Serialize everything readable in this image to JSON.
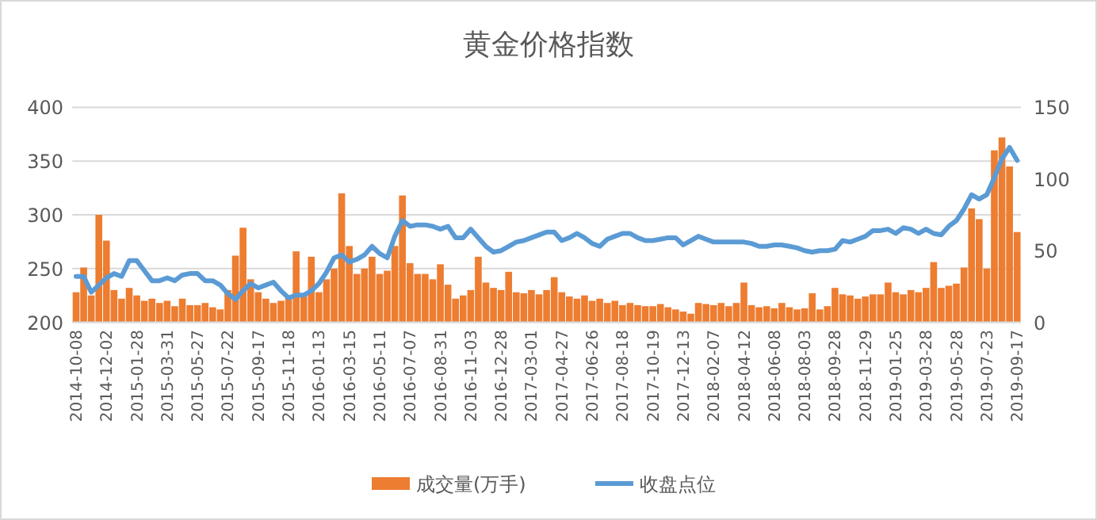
{
  "chart_data": {
    "type": "bar",
    "title": "黄金价格指数",
    "categories": [
      "2014-10-08",
      null,
      null,
      null,
      "2014-12-02",
      null,
      null,
      null,
      "2015-01-28",
      null,
      null,
      null,
      "2015-03-31",
      null,
      null,
      null,
      "2015-05-27",
      null,
      null,
      null,
      "2015-07-22",
      null,
      null,
      null,
      "2015-09-17",
      null,
      null,
      null,
      "2015-11-18",
      null,
      null,
      null,
      "2016-01-13",
      null,
      null,
      null,
      "2016-03-15",
      null,
      null,
      null,
      "2016-05-11",
      null,
      null,
      null,
      "2016-07-07",
      null,
      null,
      null,
      "2016-08-31",
      null,
      null,
      null,
      "2016-11-03",
      null,
      null,
      null,
      "2016-12-28",
      null,
      null,
      null,
      "2017-03-01",
      null,
      null,
      null,
      "2017-04-27",
      null,
      null,
      null,
      "2017-06-26",
      null,
      null,
      null,
      "2017-08-18",
      null,
      null,
      null,
      "2017-10-19",
      null,
      null,
      null,
      "2017-12-13",
      null,
      null,
      null,
      "2018-02-07",
      null,
      null,
      null,
      "2018-04-12",
      null,
      null,
      null,
      "2018-06-08",
      null,
      null,
      null,
      "2018-08-03",
      null,
      null,
      null,
      "2018-09-28",
      null,
      null,
      null,
      "2018-11-29",
      null,
      null,
      null,
      "2019-01-25",
      null,
      null,
      null,
      "2019-03-28",
      null,
      null,
      null,
      "2019-05-28",
      null,
      null,
      null,
      "2019-07-23",
      null,
      null,
      null,
      "2019-09-17"
    ],
    "series": [
      {
        "name": "成交量(万手)",
        "type": "bar",
        "color": "#ed7d31",
        "values": [
          228,
          251,
          225,
          300,
          276,
          230,
          222,
          232,
          225,
          220,
          222,
          218,
          220,
          215,
          222,
          216,
          216,
          218,
          214,
          212,
          230,
          262,
          288,
          240,
          228,
          222,
          218,
          220,
          225,
          266,
          225,
          261,
          228,
          240,
          250,
          320,
          271,
          245,
          250,
          261,
          245,
          248,
          271,
          318,
          255,
          245,
          245,
          240,
          254,
          235,
          222,
          225,
          230,
          261,
          237,
          232,
          230,
          247,
          228,
          227,
          230,
          226,
          230,
          242,
          228,
          224,
          222,
          225,
          220,
          222,
          218,
          220,
          216,
          218,
          216,
          215,
          215,
          217,
          214,
          212,
          210,
          208,
          218,
          217,
          216,
          218,
          215,
          218,
          237,
          216,
          214,
          215,
          213,
          218,
          214,
          212,
          213,
          227,
          212,
          215,
          232,
          226,
          225,
          222,
          224,
          226,
          226,
          237,
          228,
          226,
          230,
          228,
          232,
          256,
          232,
          234,
          236,
          251,
          306,
          296,
          250,
          360,
          372,
          345,
          284
        ]
      },
      {
        "name": "收盘点位",
        "type": "line",
        "axis": "y2",
        "color": "#5b9bd5",
        "values": [
          32,
          32,
          21,
          26,
          31,
          34,
          32,
          43,
          43,
          36,
          29,
          29,
          31,
          29,
          33,
          34,
          34,
          29,
          29,
          26,
          20,
          16,
          22,
          27,
          24,
          26,
          28,
          22,
          17,
          19,
          19,
          22,
          27,
          35,
          45,
          47,
          42,
          44,
          47,
          53,
          48,
          45,
          60,
          71,
          67,
          68,
          68,
          67,
          65,
          67,
          59,
          59,
          65,
          59,
          53,
          49,
          50,
          53,
          56,
          57,
          59,
          61,
          63,
          63,
          57,
          59,
          62,
          59,
          55,
          53,
          58,
          60,
          62,
          62,
          59,
          57,
          57,
          58,
          59,
          59,
          54,
          57,
          60,
          58,
          56,
          56,
          56,
          56,
          56,
          55,
          53,
          53,
          54,
          54,
          53,
          52,
          50,
          49,
          50,
          50,
          51,
          57,
          56,
          58,
          60,
          64,
          64,
          65,
          62,
          66,
          65,
          62,
          65,
          62,
          61,
          67,
          71,
          79,
          89,
          86,
          89,
          101,
          114,
          122,
          113
        ]
      }
    ],
    "ylim": [
      200,
      400
    ],
    "yticks": [
      200,
      250,
      300,
      350,
      400
    ],
    "y2lim": [
      0,
      150
    ],
    "y2ticks": [
      0,
      50,
      100,
      150
    ],
    "grid": "y",
    "legend": "bottom"
  }
}
